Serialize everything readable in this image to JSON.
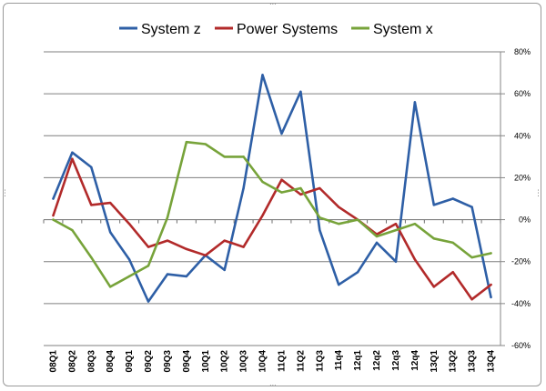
{
  "chart_data": {
    "type": "line",
    "title": "",
    "xlabel": "",
    "ylabel": "",
    "legend_position": "top",
    "categories": [
      "08Q1",
      "08Q2",
      "08Q3",
      "08Q4",
      "09Q1",
      "09Q2",
      "09Q3",
      "09Q4",
      "10Q1",
      "10Q2",
      "10Q3",
      "10Q4",
      "11Q1",
      "11Q2",
      "11Q3",
      "11q4",
      "12q1",
      "12q2",
      "12q3",
      "12q4",
      "13Q1",
      "13Q2",
      "13Q3",
      "13Q4"
    ],
    "ylim": [
      -60,
      80
    ],
    "yticks": [
      80,
      60,
      40,
      20,
      0,
      -20,
      -40,
      -60
    ],
    "ytick_labels": [
      "80%",
      "60%",
      "40%",
      "20%",
      "0%",
      "-20%",
      "-40%",
      "-60%"
    ],
    "grid": true,
    "series": [
      {
        "name": "System z",
        "color": "#2e5fa6",
        "values": [
          10,
          32,
          25,
          -6,
          -19,
          -39,
          -26,
          -27,
          -17,
          -24,
          15,
          69,
          41,
          61,
          -5,
          -31,
          -25,
          -11,
          -20,
          56,
          7,
          10,
          6,
          -37
        ]
      },
      {
        "name": "Power Systems",
        "color": "#b22a2a",
        "values": [
          2,
          29,
          7,
          8,
          -2,
          -13,
          -10,
          -14,
          -17,
          -10,
          -13,
          2,
          19,
          12,
          15,
          6,
          0,
          -7,
          -2,
          -19,
          -32,
          -25,
          -38,
          -31
        ]
      },
      {
        "name": "System x",
        "color": "#77a33a",
        "values": [
          0,
          -5,
          -18,
          -32,
          -27,
          -22,
          1,
          37,
          36,
          30,
          30,
          18,
          13,
          15,
          1,
          -2,
          0,
          -8,
          -5,
          -2,
          -9,
          -11,
          -18,
          -16
        ]
      }
    ]
  }
}
